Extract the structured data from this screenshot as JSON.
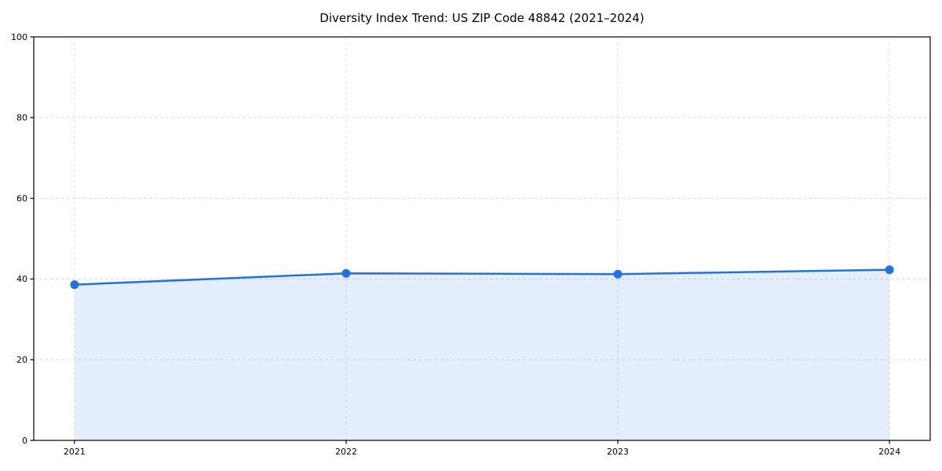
{
  "page": {
    "background_color": "#ffffff"
  },
  "chart_data": {
    "type": "area",
    "title": "Diversity Index Trend: US ZIP Code 48842 (2021–2024)",
    "categories": [
      "2021",
      "2022",
      "2023",
      "2024"
    ],
    "series": [
      {
        "name": "Diversity Index",
        "values": [
          38.6,
          41.4,
          41.2,
          42.3
        ]
      }
    ],
    "xlabel": "",
    "ylabel": "",
    "ylim": [
      0,
      100
    ],
    "yticks": [
      0,
      20,
      40,
      60,
      80,
      100
    ],
    "grid": "dashed",
    "grid_color": "#dddddd",
    "legend": "none",
    "line_color": "#2170e4",
    "fill_color": "rgba(33, 112, 228, 0.12)",
    "marker": "circle",
    "spine_color": "#000000"
  }
}
